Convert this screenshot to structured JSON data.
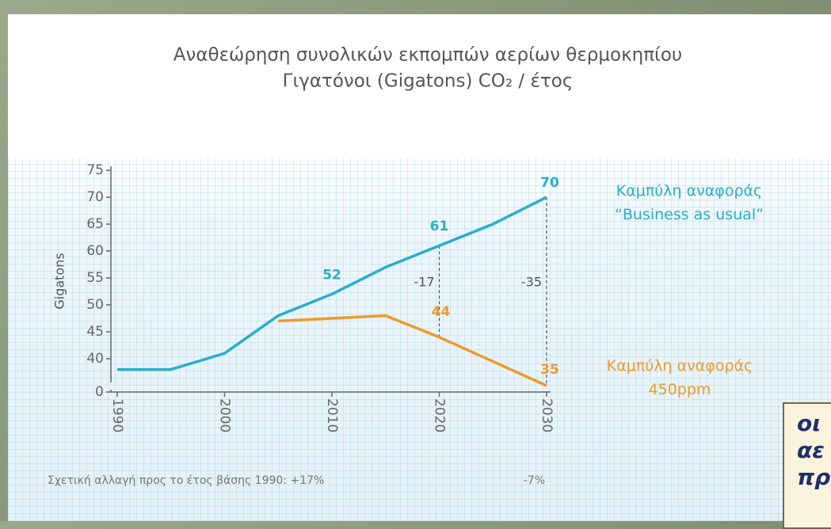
{
  "chart_data": {
    "type": "line",
    "title": "Αναθεώρηση συνολικών εκπομπών αερίων θερμοκηπίου",
    "subtitle": "Γιγατόνοι (Gigatons) CO₂ / έτος",
    "y_label": "Gigatons",
    "x": [
      1990,
      1995,
      2000,
      2005,
      2010,
      2015,
      2020,
      2025,
      2030
    ],
    "series": [
      {
        "name": "Καμπύλη αναφοράς\n“Business as usual”",
        "color": "#2aaecb",
        "values": [
          38,
          38,
          41,
          48,
          52,
          57,
          61,
          65,
          70
        ],
        "value_labels": [
          null,
          null,
          null,
          null,
          "52",
          null,
          "61",
          null,
          "70"
        ]
      },
      {
        "name": "Καμπύλη αναφοράς\n450ppm",
        "color": "#ef9a2c",
        "values": [
          null,
          null,
          null,
          47,
          null,
          48,
          44,
          null,
          35
        ],
        "value_labels": [
          null,
          null,
          null,
          null,
          null,
          null,
          "44",
          null,
          "35"
        ]
      }
    ],
    "xlim": [
      1990,
      2030
    ],
    "xticks": [
      1990,
      2000,
      2010,
      2020,
      2030
    ],
    "ylim": [
      0,
      75
    ],
    "yticks": [
      0,
      40,
      45,
      50,
      55,
      60,
      65,
      70,
      75
    ],
    "y_break": [
      0,
      35
    ],
    "annotations": [
      {
        "text": "-17",
        "x": 2020
      },
      {
        "text": "-35",
        "x": 2030
      }
    ],
    "footnote": "Σχετική αλλαγή προς το έτος βάσης 1990: +17%",
    "footnote_right": "-7%",
    "overlay_text": [
      "οι",
      "αε",
      "πρ"
    ]
  }
}
